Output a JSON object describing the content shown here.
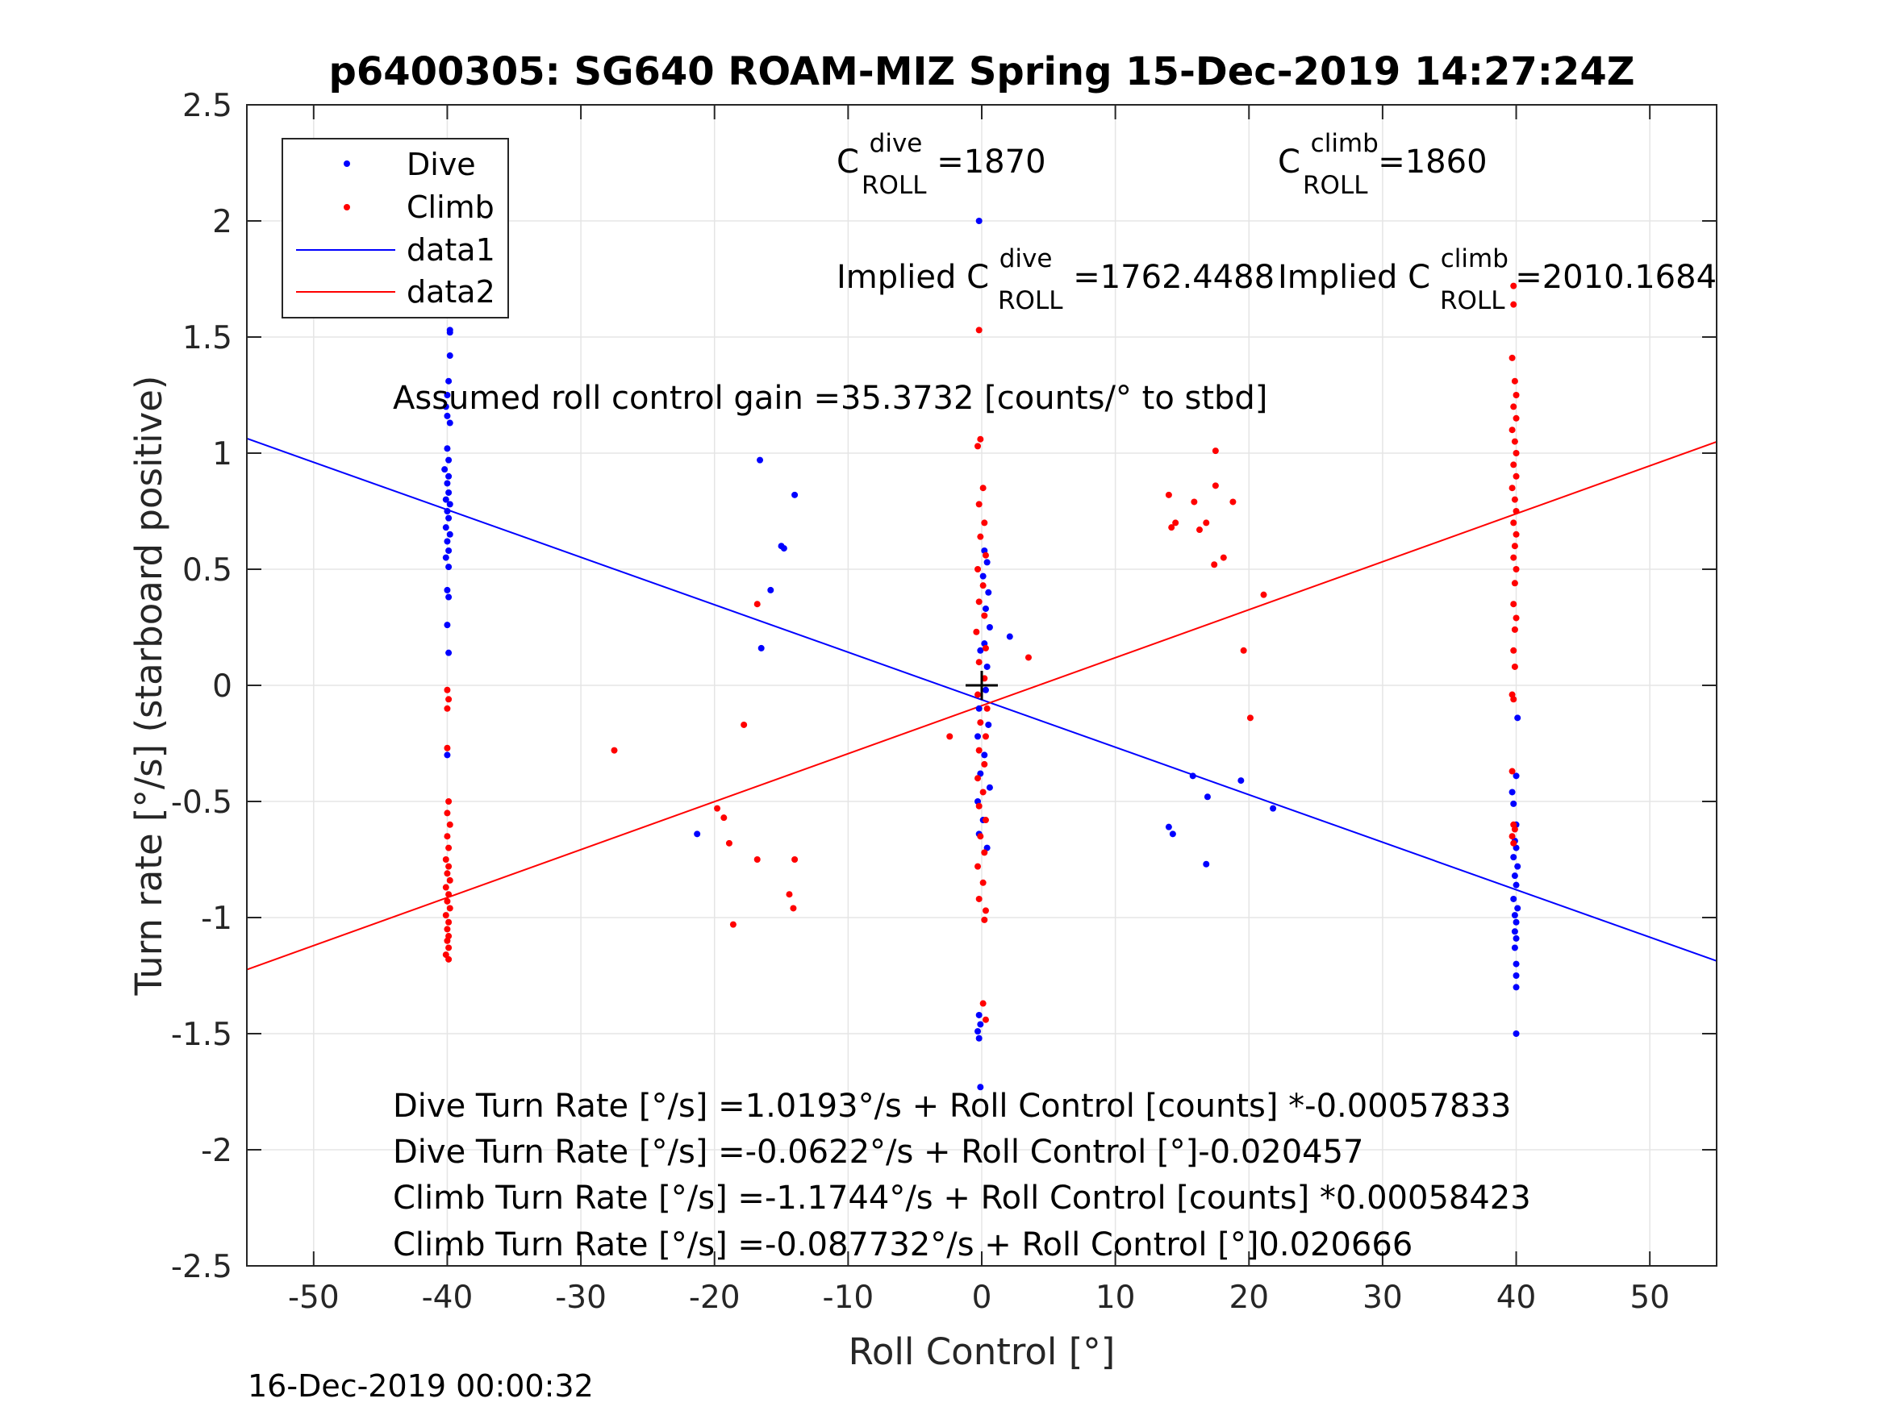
{
  "chart_data": {
    "type": "scatter",
    "title": "p6400305: SG640 ROAM-MIZ Spring 15-Dec-2019 14:27:24Z",
    "xlabel": "Roll Control [°]",
    "ylabel": "Turn rate [°/s] (starboard positive)",
    "xlim": [
      -55,
      55
    ],
    "ylim": [
      -2.5,
      2.5
    ],
    "xticks": [
      -50,
      -40,
      -30,
      -20,
      -10,
      0,
      10,
      20,
      30,
      40,
      50
    ],
    "xtick_labels": [
      "-50",
      "-40",
      "-30",
      "-20",
      "-10",
      "0",
      "10",
      "20",
      "30",
      "40",
      "50"
    ],
    "yticks": [
      -2.5,
      -2,
      -1.5,
      -1,
      -0.5,
      0,
      0.5,
      1,
      1.5,
      2,
      2.5
    ],
    "ytick_labels": [
      "-2.5",
      "-2",
      "-1.5",
      "-1",
      "-0.5",
      "0",
      "0.5",
      "1",
      "1.5",
      "2",
      "2.5"
    ],
    "grid": true,
    "legend_position": "top-left",
    "legend": [
      "Dive",
      "Climb",
      "data1",
      "data2"
    ],
    "colors": {
      "dive": "#0000ff",
      "climb": "#ff0000",
      "axis": "#262626",
      "grid": "#e5e5e5"
    },
    "series": [
      {
        "name": "Dive",
        "kind": "points",
        "color": "#0000ff",
        "points": [
          [
            -39.8,
            1.53
          ],
          [
            -39.8,
            1.52
          ],
          [
            -39.8,
            1.42
          ],
          [
            -39.9,
            1.31
          ],
          [
            -40,
            1.25
          ],
          [
            -40.1,
            1.2
          ],
          [
            -40,
            1.16
          ],
          [
            -39.8,
            1.13
          ],
          [
            -40,
            1.02
          ],
          [
            -39.9,
            0.97
          ],
          [
            -40.2,
            0.93
          ],
          [
            -39.9,
            0.9
          ],
          [
            -40,
            0.87
          ],
          [
            -39.9,
            0.83
          ],
          [
            -40.1,
            0.8
          ],
          [
            -39.8,
            0.78
          ],
          [
            -40,
            0.75
          ],
          [
            -39.9,
            0.72
          ],
          [
            -40.1,
            0.68
          ],
          [
            -39.8,
            0.65
          ],
          [
            -40,
            0.62
          ],
          [
            -39.9,
            0.58
          ],
          [
            -40.1,
            0.55
          ],
          [
            -39.9,
            0.51
          ],
          [
            -40,
            0.41
          ],
          [
            -39.9,
            0.38
          ],
          [
            -40,
            0.26
          ],
          [
            -39.9,
            0.14
          ],
          [
            -40,
            -0.3
          ],
          [
            -16.6,
            0.97
          ],
          [
            -14,
            0.82
          ],
          [
            -15,
            0.6
          ],
          [
            -14.8,
            0.59
          ],
          [
            -15.8,
            0.41
          ],
          [
            -16.5,
            0.16
          ],
          [
            -21.3,
            -0.64
          ],
          [
            -0.2,
            2.0
          ],
          [
            0.2,
            0.58
          ],
          [
            0.4,
            0.53
          ],
          [
            0.1,
            0.47
          ],
          [
            0.5,
            0.4
          ],
          [
            0.3,
            0.33
          ],
          [
            0.6,
            0.25
          ],
          [
            0.2,
            0.18
          ],
          [
            -0.1,
            0.15
          ],
          [
            0.4,
            0.08
          ],
          [
            2.1,
            0.21
          ],
          [
            0.3,
            -0.02
          ],
          [
            -0.2,
            -0.1
          ],
          [
            0.5,
            -0.17
          ],
          [
            -0.3,
            -0.22
          ],
          [
            0.2,
            -0.3
          ],
          [
            -0.1,
            -0.38
          ],
          [
            0.6,
            -0.44
          ],
          [
            -0.3,
            -0.5
          ],
          [
            0.1,
            -0.58
          ],
          [
            -0.2,
            -0.64
          ],
          [
            0.4,
            -0.7
          ],
          [
            -0.2,
            -1.42
          ],
          [
            -0.1,
            -1.46
          ],
          [
            -0.3,
            -1.49
          ],
          [
            -0.2,
            -1.52
          ],
          [
            -0.1,
            -1.73
          ],
          [
            15.8,
            -0.39
          ],
          [
            19.4,
            -0.41
          ],
          [
            21.8,
            -0.53
          ],
          [
            16.9,
            -0.48
          ],
          [
            14,
            -0.61
          ],
          [
            14.3,
            -0.64
          ],
          [
            16.8,
            -0.77
          ],
          [
            40.1,
            -0.14
          ],
          [
            40,
            -0.39
          ],
          [
            39.7,
            -0.46
          ],
          [
            39.8,
            -0.51
          ],
          [
            40,
            -0.6
          ],
          [
            39.9,
            -0.67
          ],
          [
            40,
            -0.7
          ],
          [
            39.8,
            -0.74
          ],
          [
            40.1,
            -0.78
          ],
          [
            39.9,
            -0.82
          ],
          [
            40,
            -0.86
          ],
          [
            39.8,
            -0.92
          ],
          [
            40.1,
            -0.96
          ],
          [
            39.9,
            -0.99
          ],
          [
            40,
            -1.02
          ],
          [
            39.9,
            -1.06
          ],
          [
            40,
            -1.09
          ],
          [
            39.9,
            -1.13
          ],
          [
            40,
            -1.2
          ],
          [
            40,
            -1.25
          ],
          [
            40,
            -1.3
          ],
          [
            40,
            -1.5
          ]
        ]
      },
      {
        "name": "Climb",
        "kind": "points",
        "color": "#ff0000",
        "points": [
          [
            -40,
            -0.02
          ],
          [
            -39.9,
            -0.06
          ],
          [
            -40,
            -0.1
          ],
          [
            -40,
            -0.27
          ],
          [
            -39.9,
            -0.5
          ],
          [
            -40,
            -0.55
          ],
          [
            -39.8,
            -0.6
          ],
          [
            -40,
            -0.65
          ],
          [
            -39.9,
            -0.7
          ],
          [
            -40.1,
            -0.75
          ],
          [
            -39.9,
            -0.78
          ],
          [
            -40,
            -0.81
          ],
          [
            -39.8,
            -0.84
          ],
          [
            -40.1,
            -0.87
          ],
          [
            -39.9,
            -0.9
          ],
          [
            -40,
            -0.93
          ],
          [
            -39.8,
            -0.96
          ],
          [
            -40.1,
            -0.99
          ],
          [
            -39.9,
            -1.02
          ],
          [
            -40,
            -1.05
          ],
          [
            -39.9,
            -1.08
          ],
          [
            -40,
            -1.1
          ],
          [
            -39.9,
            -1.13
          ],
          [
            -40.1,
            -1.16
          ],
          [
            -39.9,
            -1.18
          ],
          [
            -27.5,
            -0.28
          ],
          [
            -17.8,
            -0.17
          ],
          [
            -16.8,
            0.35
          ],
          [
            -19.8,
            -0.53
          ],
          [
            -19.3,
            -0.57
          ],
          [
            -18.9,
            -0.68
          ],
          [
            -16.8,
            -0.75
          ],
          [
            -14,
            -0.75
          ],
          [
            -14.4,
            -0.9
          ],
          [
            -14.1,
            -0.96
          ],
          [
            -18.6,
            -1.03
          ],
          [
            -0.2,
            1.53
          ],
          [
            -0.1,
            1.06
          ],
          [
            -0.3,
            1.03
          ],
          [
            0.1,
            0.85
          ],
          [
            -0.2,
            0.78
          ],
          [
            0.2,
            0.7
          ],
          [
            -0.1,
            0.64
          ],
          [
            0.3,
            0.56
          ],
          [
            -0.3,
            0.5
          ],
          [
            0.1,
            0.43
          ],
          [
            -0.2,
            0.36
          ],
          [
            0.2,
            0.3
          ],
          [
            -0.4,
            0.23
          ],
          [
            0.3,
            0.16
          ],
          [
            -0.2,
            0.1
          ],
          [
            0.2,
            0.03
          ],
          [
            -0.3,
            -0.04
          ],
          [
            0.4,
            -0.1
          ],
          [
            -0.1,
            -0.16
          ],
          [
            0.3,
            -0.22
          ],
          [
            -0.2,
            -0.28
          ],
          [
            0.2,
            -0.34
          ],
          [
            -0.3,
            -0.4
          ],
          [
            0.1,
            -0.46
          ],
          [
            -0.2,
            -0.52
          ],
          [
            0.3,
            -0.58
          ],
          [
            -0.1,
            -0.65
          ],
          [
            0.2,
            -0.72
          ],
          [
            -0.3,
            -0.78
          ],
          [
            0.1,
            -0.85
          ],
          [
            -0.2,
            -0.92
          ],
          [
            0.3,
            -0.97
          ],
          [
            0.2,
            -1.01
          ],
          [
            0.1,
            -1.37
          ],
          [
            0.3,
            -1.44
          ],
          [
            3.5,
            0.12
          ],
          [
            -2.4,
            -0.22
          ],
          [
            14,
            0.82
          ],
          [
            14.5,
            0.7
          ],
          [
            14.2,
            0.68
          ],
          [
            15.9,
            0.79
          ],
          [
            16.3,
            0.67
          ],
          [
            16.8,
            0.7
          ],
          [
            17.5,
            1.01
          ],
          [
            17.5,
            0.86
          ],
          [
            18.8,
            0.79
          ],
          [
            18.1,
            0.55
          ],
          [
            17.4,
            0.52
          ],
          [
            21.1,
            0.39
          ],
          [
            19.6,
            0.15
          ],
          [
            20.1,
            -0.14
          ],
          [
            39.8,
            1.72
          ],
          [
            39.8,
            1.64
          ],
          [
            39.7,
            1.41
          ],
          [
            39.9,
            1.31
          ],
          [
            40,
            1.25
          ],
          [
            39.8,
            1.2
          ],
          [
            40,
            1.15
          ],
          [
            39.7,
            1.1
          ],
          [
            39.9,
            1.05
          ],
          [
            40,
            1.0
          ],
          [
            39.8,
            0.95
          ],
          [
            40,
            0.9
          ],
          [
            39.7,
            0.85
          ],
          [
            39.9,
            0.8
          ],
          [
            40,
            0.75
          ],
          [
            39.8,
            0.7
          ],
          [
            40,
            0.65
          ],
          [
            39.9,
            0.6
          ],
          [
            39.8,
            0.55
          ],
          [
            40,
            0.5
          ],
          [
            39.9,
            0.44
          ],
          [
            39.8,
            0.35
          ],
          [
            40,
            0.29
          ],
          [
            39.9,
            0.24
          ],
          [
            39.8,
            0.15
          ],
          [
            39.9,
            0.08
          ],
          [
            39.7,
            -0.04
          ],
          [
            39.8,
            -0.06
          ],
          [
            39.7,
            -0.37
          ],
          [
            39.8,
            -0.6
          ],
          [
            39.9,
            -0.62
          ],
          [
            39.7,
            -0.65
          ],
          [
            39.8,
            -0.68
          ]
        ]
      },
      {
        "name": "data1",
        "kind": "line",
        "color": "#0000ff",
        "points": [
          [
            -55,
            1.063
          ],
          [
            55,
            -1.187
          ]
        ]
      },
      {
        "name": "data2",
        "kind": "line",
        "color": "#ff0000",
        "points": [
          [
            -55,
            -1.224
          ],
          [
            55,
            1.049
          ]
        ]
      }
    ],
    "markers": [
      {
        "name": "origin-cross",
        "x": 0,
        "y": 0,
        "color": "#000000"
      }
    ],
    "annotations": {
      "c_dive": {
        "base": "C",
        "sup": "dive",
        "sub": "ROLL",
        "value": " =1870"
      },
      "c_climb": {
        "base": "C",
        "sup": "climb",
        "sub": "ROLL",
        "value": " =1860"
      },
      "implied_dive": {
        "base": "Implied C",
        "sup": "dive",
        "sub": "ROLL",
        "value": " =1762.4488"
      },
      "implied_climb": {
        "base": "Implied C",
        "sup": "climb",
        "sub": "ROLL",
        "value": " =2010.1684"
      },
      "gain": "Assumed roll control gain =35.3732 [counts/° to stbd]",
      "eq1": "Dive Turn Rate [°/s] =1.0193°/s + Roll Control [counts] *-0.00057833",
      "eq2": "Dive Turn Rate [°/s] =-0.0622°/s + Roll Control [°]-0.020457",
      "eq3": "Climb Turn Rate [°/s] =-1.1744°/s + Roll Control [counts] *0.00058423",
      "eq4": "Climb Turn Rate [°/s] =-0.087732°/s + Roll Control [°]0.020666"
    }
  },
  "footer": {
    "timestamp": "16-Dec-2019 00:00:32"
  }
}
